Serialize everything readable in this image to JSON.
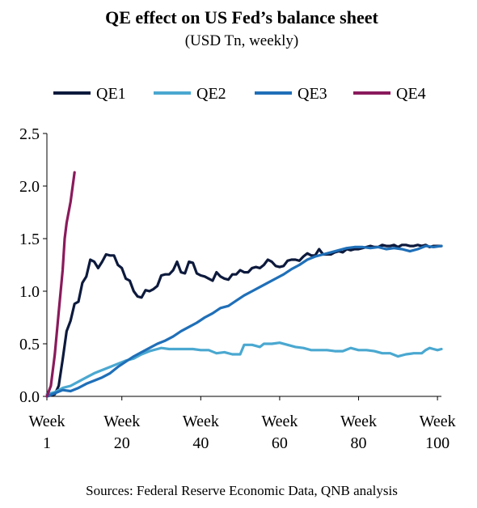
{
  "chart_data": {
    "type": "line",
    "title": "QE effect on US Fed’s balance sheet",
    "subtitle": "(USD Tn, weekly)",
    "source": "Sources: Federal Reserve Economic Data, QNB analysis",
    "xlabel": "",
    "ylabel": "",
    "xlim": [
      1,
      101
    ],
    "ylim": [
      0,
      2.5
    ],
    "y_ticks": [
      0.0,
      0.5,
      1.0,
      1.5,
      2.0,
      2.5
    ],
    "y_tick_labels": [
      "0.0",
      "0.5",
      "1.0",
      "1.5",
      "2.0",
      "2.5"
    ],
    "x_ticks": [
      1,
      20,
      40,
      60,
      80,
      100
    ],
    "x_tick_labels": [
      [
        "Week",
        "1"
      ],
      [
        "Week",
        "20"
      ],
      [
        "Week",
        "40"
      ],
      [
        "Week",
        "60"
      ],
      [
        "Week",
        "80"
      ],
      [
        "Week",
        "100"
      ]
    ],
    "grid": false,
    "legend_placement": "top",
    "series": [
      {
        "name": "QE1",
        "color": "#0d1a3d",
        "points": [
          [
            1,
            0.0
          ],
          [
            3,
            0.02
          ],
          [
            4,
            0.1
          ],
          [
            5,
            0.35
          ],
          [
            6,
            0.62
          ],
          [
            7,
            0.72
          ],
          [
            8,
            0.88
          ],
          [
            9,
            0.9
          ],
          [
            10,
            1.08
          ],
          [
            11,
            1.14
          ],
          [
            12,
            1.3
          ],
          [
            13,
            1.28
          ],
          [
            14,
            1.22
          ],
          [
            15,
            1.28
          ],
          [
            16,
            1.35
          ],
          [
            17,
            1.34
          ],
          [
            18,
            1.34
          ],
          [
            19,
            1.25
          ],
          [
            20,
            1.22
          ],
          [
            21,
            1.12
          ],
          [
            22,
            1.1
          ],
          [
            23,
            1.0
          ],
          [
            24,
            0.95
          ],
          [
            25,
            0.94
          ],
          [
            26,
            1.01
          ],
          [
            27,
            1.0
          ],
          [
            28,
            1.02
          ],
          [
            29,
            1.05
          ],
          [
            30,
            1.15
          ],
          [
            31,
            1.16
          ],
          [
            32,
            1.16
          ],
          [
            33,
            1.2
          ],
          [
            34,
            1.28
          ],
          [
            35,
            1.18
          ],
          [
            36,
            1.17
          ],
          [
            37,
            1.28
          ],
          [
            38,
            1.27
          ],
          [
            39,
            1.17
          ],
          [
            40,
            1.15
          ],
          [
            41,
            1.14
          ],
          [
            42,
            1.12
          ],
          [
            43,
            1.1
          ],
          [
            44,
            1.18
          ],
          [
            45,
            1.14
          ],
          [
            46,
            1.12
          ],
          [
            47,
            1.11
          ],
          [
            48,
            1.16
          ],
          [
            49,
            1.16
          ],
          [
            50,
            1.2
          ],
          [
            51,
            1.18
          ],
          [
            52,
            1.18
          ],
          [
            53,
            1.22
          ],
          [
            54,
            1.23
          ],
          [
            55,
            1.22
          ],
          [
            56,
            1.25
          ],
          [
            57,
            1.3
          ],
          [
            58,
            1.28
          ],
          [
            59,
            1.24
          ],
          [
            60,
            1.23
          ],
          [
            61,
            1.24
          ],
          [
            62,
            1.29
          ],
          [
            63,
            1.3
          ],
          [
            64,
            1.3
          ],
          [
            65,
            1.29
          ],
          [
            66,
            1.33
          ],
          [
            67,
            1.36
          ],
          [
            68,
            1.34
          ],
          [
            69,
            1.34
          ],
          [
            70,
            1.4
          ],
          [
            71,
            1.35
          ],
          [
            72,
            1.35
          ],
          [
            73,
            1.35
          ],
          [
            74,
            1.37
          ],
          [
            75,
            1.38
          ],
          [
            76,
            1.37
          ],
          [
            77,
            1.4
          ],
          [
            78,
            1.39
          ],
          [
            79,
            1.4
          ],
          [
            80,
            1.4
          ],
          [
            81,
            1.41
          ],
          [
            82,
            1.42
          ],
          [
            83,
            1.43
          ],
          [
            84,
            1.42
          ],
          [
            85,
            1.42
          ],
          [
            86,
            1.44
          ],
          [
            87,
            1.43
          ],
          [
            88,
            1.43
          ],
          [
            89,
            1.44
          ],
          [
            90,
            1.42
          ],
          [
            91,
            1.44
          ],
          [
            92,
            1.44
          ],
          [
            93,
            1.43
          ],
          [
            94,
            1.43
          ],
          [
            95,
            1.44
          ],
          [
            96,
            1.43
          ],
          [
            97,
            1.44
          ],
          [
            98,
            1.42
          ],
          [
            99,
            1.43
          ],
          [
            100,
            1.43
          ],
          [
            101,
            1.43
          ]
        ]
      },
      {
        "name": "QE2",
        "color": "#4aa8d0",
        "points": [
          [
            1,
            0.02
          ],
          [
            3,
            0.04
          ],
          [
            5,
            0.08
          ],
          [
            7,
            0.1
          ],
          [
            9,
            0.14
          ],
          [
            11,
            0.18
          ],
          [
            13,
            0.22
          ],
          [
            15,
            0.25
          ],
          [
            17,
            0.28
          ],
          [
            19,
            0.31
          ],
          [
            21,
            0.34
          ],
          [
            23,
            0.36
          ],
          [
            25,
            0.4
          ],
          [
            27,
            0.43
          ],
          [
            29,
            0.45
          ],
          [
            30,
            0.46
          ],
          [
            32,
            0.45
          ],
          [
            34,
            0.45
          ],
          [
            36,
            0.45
          ],
          [
            38,
            0.45
          ],
          [
            40,
            0.44
          ],
          [
            42,
            0.44
          ],
          [
            44,
            0.41
          ],
          [
            46,
            0.42
          ],
          [
            48,
            0.4
          ],
          [
            50,
            0.4
          ],
          [
            51,
            0.49
          ],
          [
            53,
            0.49
          ],
          [
            55,
            0.47
          ],
          [
            56,
            0.5
          ],
          [
            58,
            0.5
          ],
          [
            60,
            0.51
          ],
          [
            62,
            0.49
          ],
          [
            64,
            0.47
          ],
          [
            66,
            0.46
          ],
          [
            68,
            0.44
          ],
          [
            70,
            0.44
          ],
          [
            72,
            0.44
          ],
          [
            74,
            0.43
          ],
          [
            76,
            0.43
          ],
          [
            78,
            0.46
          ],
          [
            80,
            0.44
          ],
          [
            82,
            0.44
          ],
          [
            84,
            0.43
          ],
          [
            86,
            0.41
          ],
          [
            88,
            0.41
          ],
          [
            90,
            0.38
          ],
          [
            92,
            0.4
          ],
          [
            94,
            0.41
          ],
          [
            96,
            0.41
          ],
          [
            97,
            0.44
          ],
          [
            98,
            0.46
          ],
          [
            99,
            0.45
          ],
          [
            100,
            0.44
          ],
          [
            101,
            0.45
          ]
        ]
      },
      {
        "name": "QE3",
        "color": "#1f6fb8",
        "points": [
          [
            1,
            0.0
          ],
          [
            3,
            0.03
          ],
          [
            5,
            0.06
          ],
          [
            7,
            0.05
          ],
          [
            9,
            0.08
          ],
          [
            11,
            0.12
          ],
          [
            13,
            0.15
          ],
          [
            15,
            0.18
          ],
          [
            17,
            0.22
          ],
          [
            19,
            0.28
          ],
          [
            21,
            0.33
          ],
          [
            23,
            0.38
          ],
          [
            25,
            0.42
          ],
          [
            27,
            0.46
          ],
          [
            29,
            0.5
          ],
          [
            31,
            0.53
          ],
          [
            33,
            0.57
          ],
          [
            35,
            0.62
          ],
          [
            37,
            0.66
          ],
          [
            39,
            0.7
          ],
          [
            41,
            0.75
          ],
          [
            43,
            0.79
          ],
          [
            45,
            0.84
          ],
          [
            47,
            0.86
          ],
          [
            49,
            0.91
          ],
          [
            51,
            0.96
          ],
          [
            53,
            1.0
          ],
          [
            55,
            1.04
          ],
          [
            57,
            1.08
          ],
          [
            59,
            1.12
          ],
          [
            61,
            1.16
          ],
          [
            63,
            1.21
          ],
          [
            65,
            1.25
          ],
          [
            67,
            1.3
          ],
          [
            69,
            1.33
          ],
          [
            71,
            1.35
          ],
          [
            73,
            1.37
          ],
          [
            75,
            1.39
          ],
          [
            77,
            1.41
          ],
          [
            79,
            1.42
          ],
          [
            81,
            1.42
          ],
          [
            83,
            1.41
          ],
          [
            85,
            1.42
          ],
          [
            87,
            1.4
          ],
          [
            89,
            1.41
          ],
          [
            91,
            1.4
          ],
          [
            93,
            1.38
          ],
          [
            95,
            1.4
          ],
          [
            97,
            1.43
          ],
          [
            99,
            1.42
          ],
          [
            101,
            1.43
          ]
        ]
      },
      {
        "name": "QE4",
        "color": "#8a1a5c",
        "points": [
          [
            1,
            0.0
          ],
          [
            2,
            0.1
          ],
          [
            3,
            0.4
          ],
          [
            4,
            0.8
          ],
          [
            5,
            1.2
          ],
          [
            5.5,
            1.5
          ],
          [
            6,
            1.65
          ],
          [
            7,
            1.85
          ],
          [
            8,
            2.13
          ]
        ]
      }
    ]
  }
}
